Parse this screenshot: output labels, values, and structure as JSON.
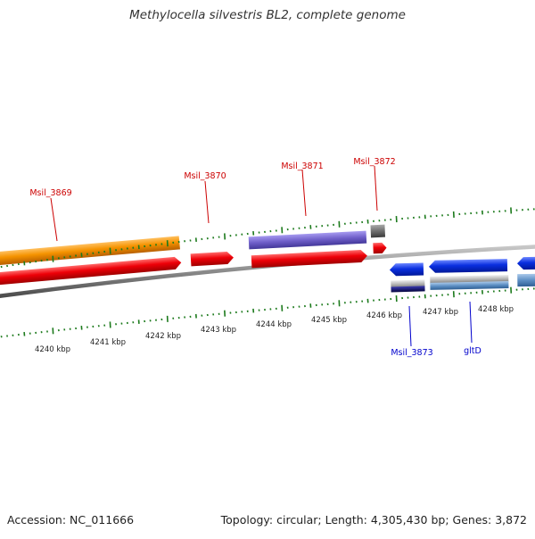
{
  "title": "Methylocella silvestris BL2, complete genome",
  "footer": {
    "accession": "Accession: NC_011666",
    "summary": "Topology: circular; Length: 4,305,430 bp; Genes: 3,872"
  },
  "colors": {
    "backbone": "#7a7a7a",
    "tick": "#1c7a1c",
    "label_forward": "#cc0000",
    "label_reverse": "#0000cc",
    "scale_text": "#222222",
    "orange_gene": "#f08a00",
    "red_gene": "#e8000a",
    "purple_gene": "#6f5fc9",
    "gray_gene": "#6e6e6e",
    "blue_gene": "#0a2fe0",
    "silver_gene": "#b8b8b8",
    "navy_gene": "#0b0b6a",
    "steel_gene": "#5d8fc4"
  },
  "scale": {
    "ticks": [
      "4240 kbp",
      "4241 kbp",
      "4242 kbp",
      "4243 kbp",
      "4244 kbp",
      "4245 kbp",
      "4246 kbp",
      "4247 kbp",
      "4248 kbp"
    ]
  },
  "gene_labels": {
    "forward": [
      "Msil_3869",
      "Msil_3870",
      "Msil_3871",
      "Msil_3872"
    ],
    "reverse": [
      "Msil_3873",
      "gltD"
    ]
  }
}
